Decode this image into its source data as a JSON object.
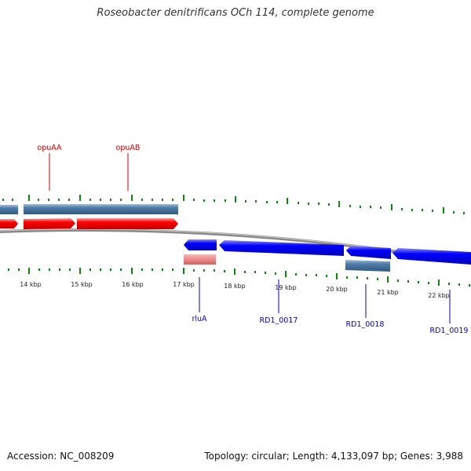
{
  "title": "Roseobacter denitrificans OCh 114, complete genome",
  "footer": {
    "accession": "Accession: NC_008209",
    "topology": "Topology: circular",
    "length": "Length: 4,133,097 bp",
    "genes": "Genes: 3,988"
  },
  "colors": {
    "forward_cds": "#ff0000",
    "reverse_cds": "#0000ff",
    "gene_bar": "#4f7ca9",
    "rna_pink": "#ee8888",
    "backbone": "#8a8a8a",
    "tick": "#0a8a0a",
    "forward_label": "#cc0000",
    "reverse_label": "#0000cc"
  },
  "scale": {
    "unit": "kbp",
    "labels": [
      "14 kbp",
      "15 kbp",
      "16 kbp",
      "17 kbp",
      "18 kbp",
      "19 kbp",
      "20 kbp",
      "21 kbp",
      "22 kbp"
    ]
  },
  "forward_genes": [
    {
      "name": "opuAA"
    },
    {
      "name": "opuAB"
    }
  ],
  "reverse_genes": [
    {
      "name": "rluA"
    },
    {
      "name": "RD1_0017"
    },
    {
      "name": "RD1_0018"
    },
    {
      "name": "RD1_0019"
    }
  ]
}
